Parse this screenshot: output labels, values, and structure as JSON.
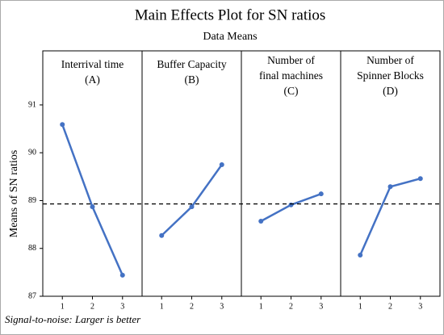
{
  "chart_data": {
    "type": "line",
    "title": "Main Effects Plot for SN ratios",
    "subtitle": "Data Means",
    "y_label": "Means of SN ratios",
    "note": "Signal-to-noise: Larger is better",
    "ylim": [
      87,
      92.13
    ],
    "yticks": [
      87,
      88,
      89,
      90,
      91
    ],
    "xlim": [
      0.35,
      3.65
    ],
    "reference_line": 88.93,
    "color": "#4472c4",
    "panels": [
      {
        "title": [
          "Interrival time",
          "(A)"
        ],
        "categories": [
          1,
          2,
          3
        ],
        "values": [
          90.59,
          88.87,
          87.44
        ]
      },
      {
        "title": [
          "Buffer Capacity",
          "(B)"
        ],
        "categories": [
          1,
          2,
          3
        ],
        "values": [
          88.27,
          88.87,
          89.75
        ]
      },
      {
        "title": [
          "Number of",
          "final machines",
          "(C)"
        ],
        "categories": [
          1,
          2,
          3
        ],
        "values": [
          88.57,
          88.91,
          89.14
        ]
      },
      {
        "title": [
          "Number of",
          "Spinner Blocks",
          "(D)"
        ],
        "categories": [
          1,
          2,
          3
        ],
        "values": [
          87.86,
          89.29,
          89.46
        ]
      }
    ]
  }
}
